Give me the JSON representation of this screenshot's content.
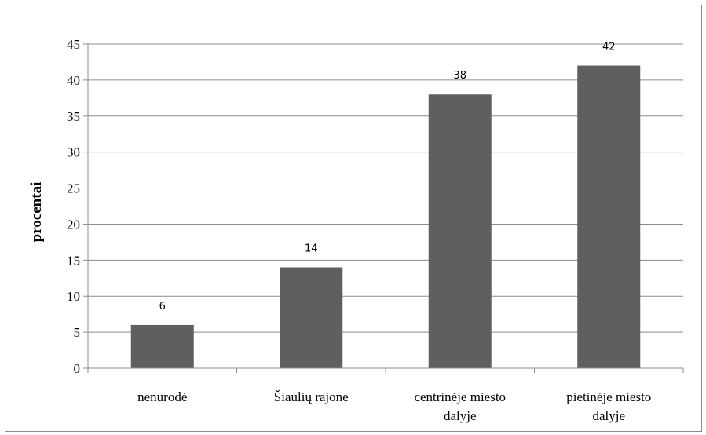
{
  "chart_data": {
    "type": "bar",
    "categories": [
      [
        "nenurodė"
      ],
      [
        "Šiaulių rajone"
      ],
      [
        "centrinėje miesto",
        "dalyje"
      ],
      [
        "pietinėje miesto",
        "dalyje"
      ]
    ],
    "values": [
      6,
      14,
      38,
      42
    ],
    "data_labels": [
      "6",
      "14",
      "38",
      "42"
    ],
    "ylabel": "procentai",
    "xlabel": "",
    "title": "",
    "ylim": [
      0,
      45
    ],
    "yticks": [
      0,
      5,
      10,
      15,
      20,
      25,
      30,
      35,
      40,
      45
    ],
    "grid": true,
    "legend": "none",
    "bar_color": "#5f5f5f",
    "grid_color": "#8c8c8c"
  }
}
